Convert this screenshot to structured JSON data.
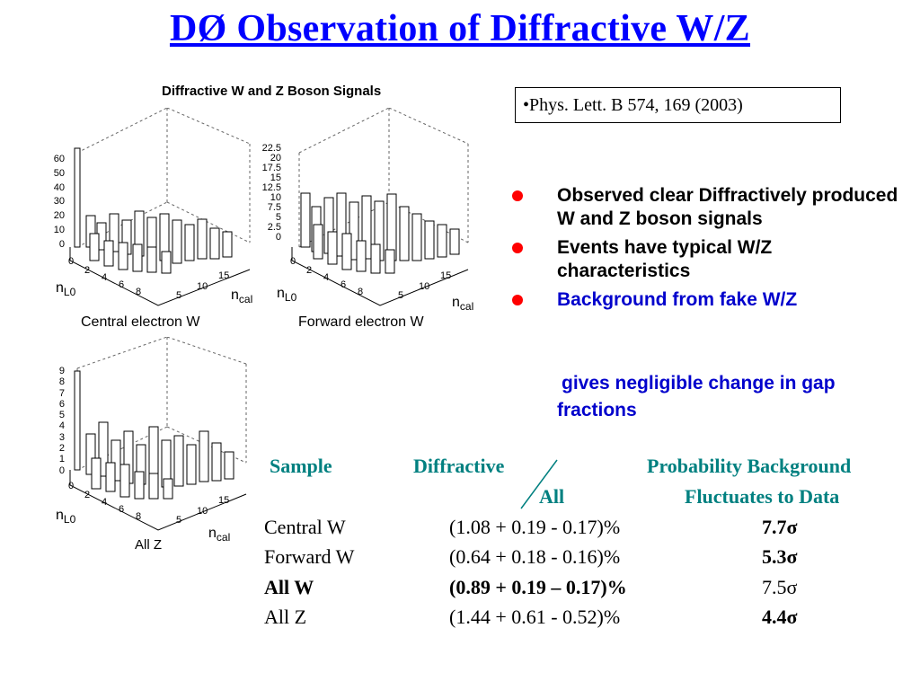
{
  "title": "DØ Observation of Diffractive W/Z",
  "figure": {
    "title": "Diffractive W and Z Boson Signals",
    "panels": [
      {
        "caption": "Central electron W",
        "z_ticks": [
          "60",
          "50",
          "40",
          "30",
          "20",
          "10",
          "0"
        ],
        "nl0_ticks": [
          "0",
          "2",
          "4",
          "6",
          "8"
        ],
        "ncal_ticks": [
          "5",
          "10",
          "15"
        ]
      },
      {
        "caption": "Forward electron W",
        "z_ticks": [
          "22.5",
          "20",
          "17.5",
          "15",
          "12.5",
          "10",
          "7.5",
          "5",
          "2.5",
          "0"
        ],
        "nl0_ticks": [
          "0",
          "2",
          "4",
          "6",
          "8"
        ],
        "ncal_ticks": [
          "5",
          "10",
          "15"
        ]
      },
      {
        "caption": "All Z",
        "z_ticks": [
          "9",
          "8",
          "7",
          "6",
          "5",
          "4",
          "3",
          "2",
          "1",
          "0"
        ],
        "nl0_ticks": [
          "0",
          "2",
          "4",
          "6",
          "8"
        ],
        "ncal_ticks": [
          "5",
          "10",
          "15"
        ]
      }
    ],
    "axis_x": {
      "base": "n",
      "sub": "L0"
    },
    "axis_y": {
      "base": "n",
      "sub": "cal"
    }
  },
  "reference": "•Phys. Lett. B 574, 169 (2003)",
  "bullets": [
    {
      "text": "Observed clear Diffractively produced W and Z  boson signals"
    },
    {
      "text": "Events have typical W/Z characteristics"
    },
    {
      "text": "Background from fake W/Z"
    }
  ],
  "bullet_continuation": "gives negligible change in gap fractions",
  "table": {
    "headers": {
      "sample": "Sample",
      "diffractive": "Diffractive",
      "all": "All",
      "prob_line1": "Probability Background",
      "prob_line2": "Fluctuates to Data"
    },
    "rows": [
      {
        "sample": "Central W",
        "fraction": "(1.08 + 0.19 - 0.17)%",
        "prob": "7.7σ"
      },
      {
        "sample": "Forward W",
        "fraction": "(0.64 + 0.18 - 0.16)%",
        "prob": "5.3σ"
      },
      {
        "sample": "All W",
        "fraction": "(0.89 + 0.19 – 0.17)%",
        "prob": "7.5σ"
      },
      {
        "sample": "All Z",
        "fraction": "(1.44 + 0.61 - 0.52)%",
        "prob": "4.4σ"
      }
    ]
  },
  "colors": {
    "title": "#0000ff",
    "bullet_dot": "#ff0000",
    "blue_text": "#0000cc",
    "table_header": "#008080"
  }
}
